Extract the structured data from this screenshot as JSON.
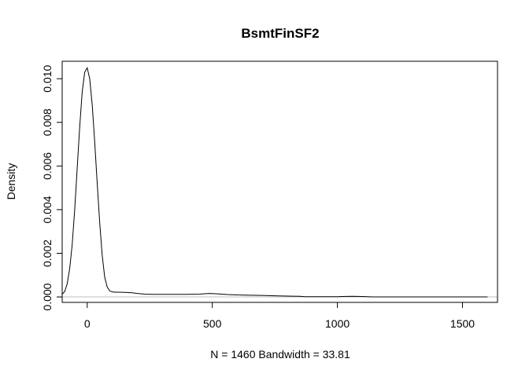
{
  "chart_data": {
    "type": "line",
    "title": "BsmtFinSF2",
    "xlabel": "N = 1460   Bandwidth = 33.81",
    "ylabel": "Density",
    "xlim": [
      -100,
      1640
    ],
    "ylim": [
      -0.00025,
      0.0108
    ],
    "x_ticks": [
      0,
      500,
      1000,
      1500
    ],
    "x_tick_labels": [
      "0",
      "500",
      "1000",
      "1500"
    ],
    "y_ticks": [
      0.0,
      0.002,
      0.004,
      0.006,
      0.008,
      0.01
    ],
    "y_tick_labels": [
      "0.000",
      "0.002",
      "0.004",
      "0.006",
      "0.008",
      "0.010"
    ],
    "grid": false,
    "legend": "none",
    "baseline": {
      "y": 0,
      "color": "#bebebe"
    },
    "series": [
      {
        "color": "#000000",
        "x": [
          -100,
          -90,
          -80,
          -70,
          -60,
          -50,
          -40,
          -30,
          -20,
          -10,
          0,
          10,
          20,
          30,
          40,
          50,
          60,
          70,
          80,
          90,
          100,
          110,
          120,
          150,
          180,
          200,
          230,
          260,
          300,
          350,
          400,
          450,
          490,
          520,
          560,
          600,
          650,
          700,
          750,
          800,
          850,
          870,
          900,
          950,
          1000,
          1020,
          1060,
          1100,
          1120,
          1140,
          1200,
          1300,
          1400,
          1500,
          1600
        ],
        "y": [
          0.00012,
          0.00025,
          0.0006,
          0.0013,
          0.0024,
          0.004,
          0.0059,
          0.0078,
          0.0094,
          0.0103,
          0.0105,
          0.01,
          0.0088,
          0.0071,
          0.0052,
          0.0034,
          0.0019,
          0.0009,
          0.00045,
          0.00028,
          0.00023,
          0.00022,
          0.00022,
          0.00021,
          0.00019,
          0.00016,
          0.00013,
          0.00012,
          0.00012,
          0.00012,
          0.00012,
          0.00013,
          0.00016,
          0.00014,
          0.00011,
          9e-05,
          8e-05,
          7e-05,
          5e-05,
          4e-05,
          3e-05,
          1e-05,
          1e-05,
          1e-05,
          1e-05,
          2e-05,
          3e-05,
          2e-05,
          1e-05,
          3e-06,
          1.5e-06,
          1e-06,
          5e-07,
          3e-07,
          1e-07
        ]
      }
    ]
  }
}
